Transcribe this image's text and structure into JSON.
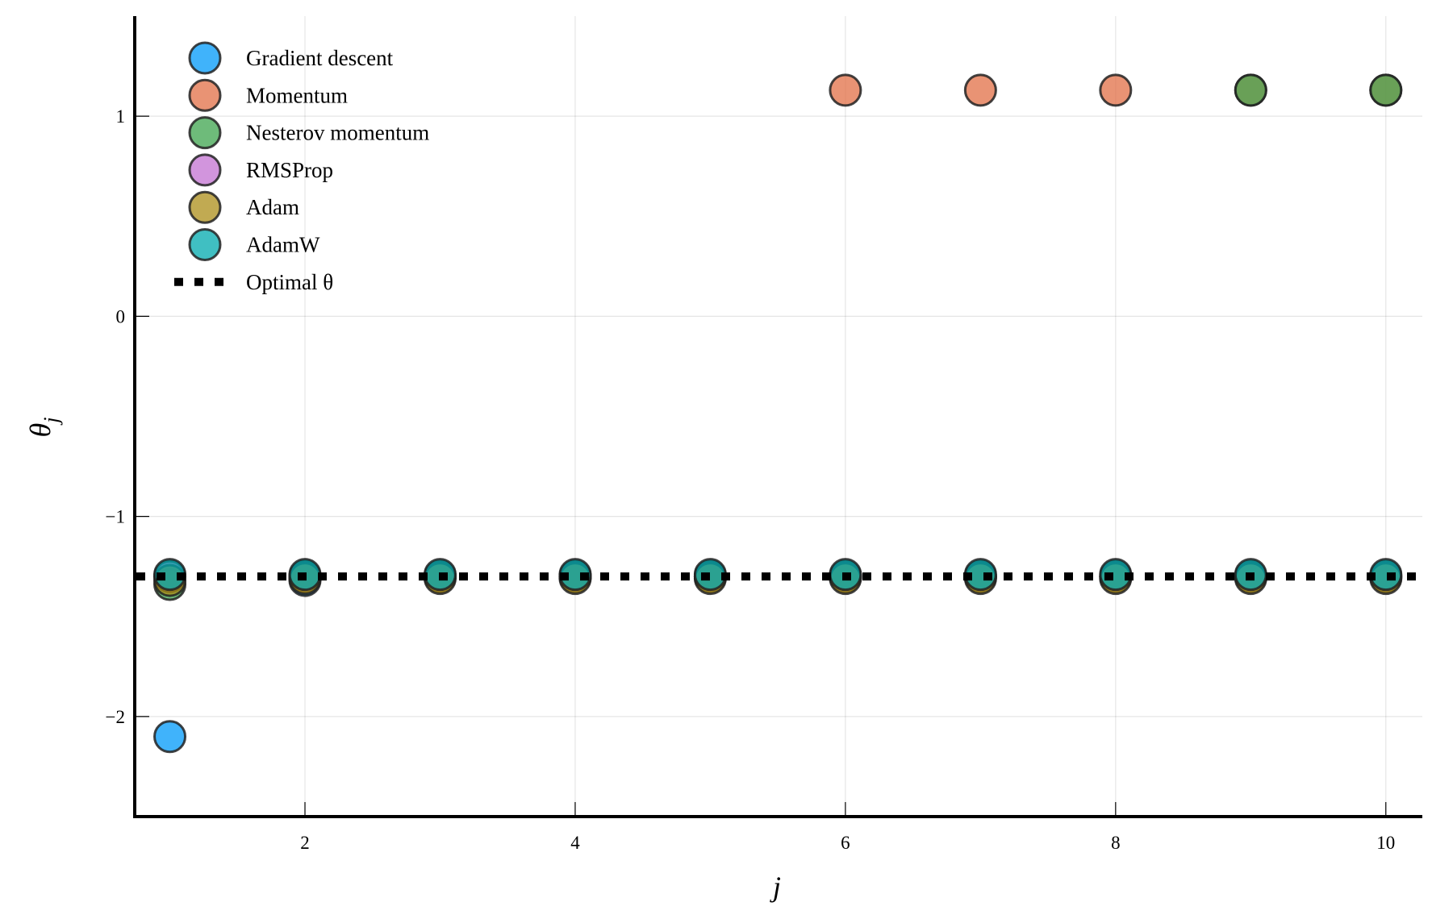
{
  "chart_data": {
    "type": "scatter",
    "title": "",
    "xlabel": "j",
    "ylabel": "θ_j",
    "xlim": [
      0.74,
      10.27
    ],
    "ylim": [
      -2.5,
      1.5
    ],
    "xticks": [
      2,
      4,
      6,
      8,
      10
    ],
    "xtick_labels": [
      "2",
      "4",
      "6",
      "8",
      "10"
    ],
    "yticks": [
      -2,
      -1,
      0,
      1
    ],
    "ytick_labels": [
      "−2",
      "−1",
      "0",
      "1"
    ],
    "grid": true,
    "legend_position": "top-left",
    "x": [
      1,
      2,
      3,
      4,
      5,
      6,
      7,
      8,
      9,
      10
    ],
    "series": [
      {
        "name": "Gradient descent",
        "color": "#009AFA",
        "values": [
          -2.1,
          -1.32,
          -1.3,
          -1.3,
          -1.3,
          -1.3,
          -1.3,
          -1.3,
          -1.3,
          -1.3
        ]
      },
      {
        "name": "Momentum",
        "color": "#E26F46",
        "values": [
          -1.3,
          -1.3,
          -1.3,
          -1.3,
          -1.3,
          1.13,
          1.13,
          1.13,
          1.13,
          1.13
        ]
      },
      {
        "name": "Nesterov momentum",
        "color": "#3DA44D",
        "values": [
          -1.34,
          -1.3,
          -1.3,
          -1.3,
          -1.3,
          -1.3,
          -1.3,
          -1.3,
          1.13,
          1.13
        ]
      },
      {
        "name": "RMSProp",
        "color": "#C371D2",
        "values": [
          -1.3,
          -1.3,
          -1.3,
          -1.3,
          -1.3,
          -1.3,
          -1.3,
          -1.3,
          -1.3,
          -1.3
        ]
      },
      {
        "name": "Adam",
        "color": "#AC8E18",
        "values": [
          -1.32,
          -1.31,
          -1.31,
          -1.31,
          -1.31,
          -1.31,
          -1.31,
          -1.31,
          -1.31,
          -1.31
        ]
      },
      {
        "name": "AdamW",
        "color": "#00A9AD",
        "values": [
          -1.29,
          -1.29,
          -1.29,
          -1.29,
          -1.29,
          -1.29,
          -1.29,
          -1.29,
          -1.29,
          -1.29
        ]
      }
    ],
    "reference_line": {
      "name": "Optimal θ",
      "value": -1.3,
      "style": "dotted",
      "color": "#000000"
    }
  }
}
